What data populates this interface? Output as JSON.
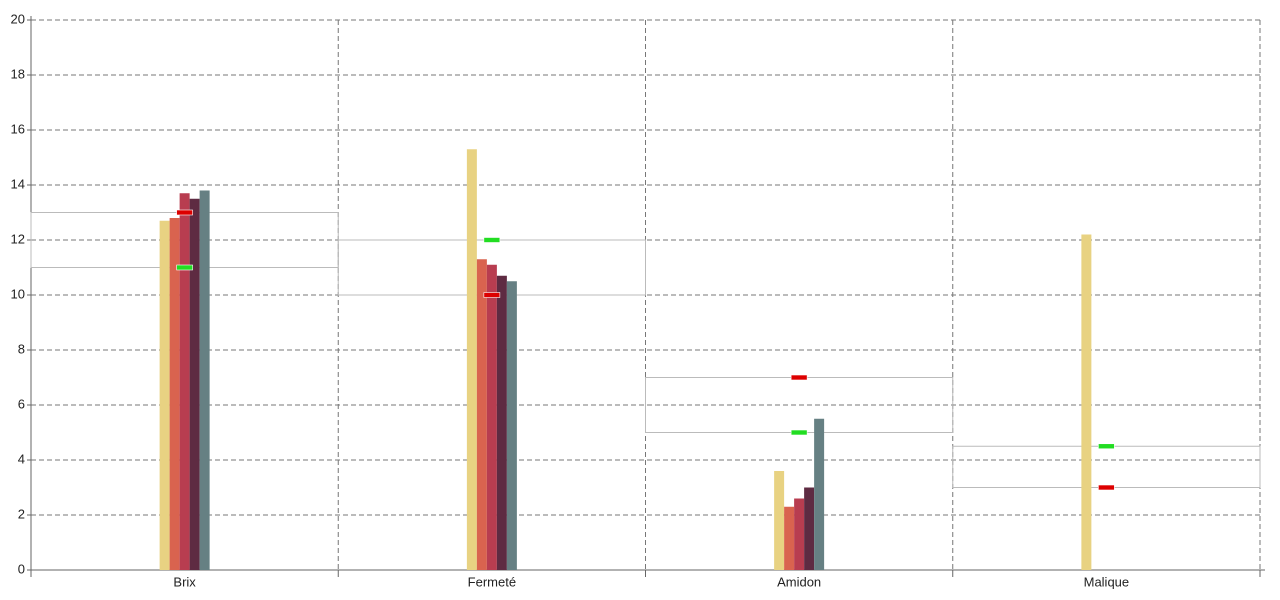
{
  "chart_data": {
    "type": "bar",
    "categories": [
      "Brix",
      "Fermeté",
      "Amidon",
      "Malique"
    ],
    "series": [
      {
        "color": "#e8d282",
        "values": [
          12.7,
          15.3,
          3.6,
          12.2
        ]
      },
      {
        "color": "#d9634f",
        "values": [
          12.8,
          11.3,
          2.3,
          0
        ]
      },
      {
        "color": "#b83d50",
        "values": [
          13.7,
          11.1,
          2.6,
          0
        ]
      },
      {
        "color": "#5e2b42",
        "values": [
          13.5,
          10.7,
          3.0,
          0
        ]
      },
      {
        "color": "#668083",
        "values": [
          13.8,
          10.5,
          5.5,
          0
        ]
      }
    ],
    "targets": [
      {
        "color": "#22dd22",
        "values": [
          11,
          12,
          5,
          4.5
        ]
      },
      {
        "color": "#dd0000",
        "values": [
          13,
          10,
          7,
          3
        ]
      }
    ],
    "ylim": [
      0,
      20
    ],
    "yticks": [
      0,
      2,
      4,
      6,
      8,
      10,
      12,
      14,
      16,
      18,
      20
    ],
    "grid": true
  }
}
